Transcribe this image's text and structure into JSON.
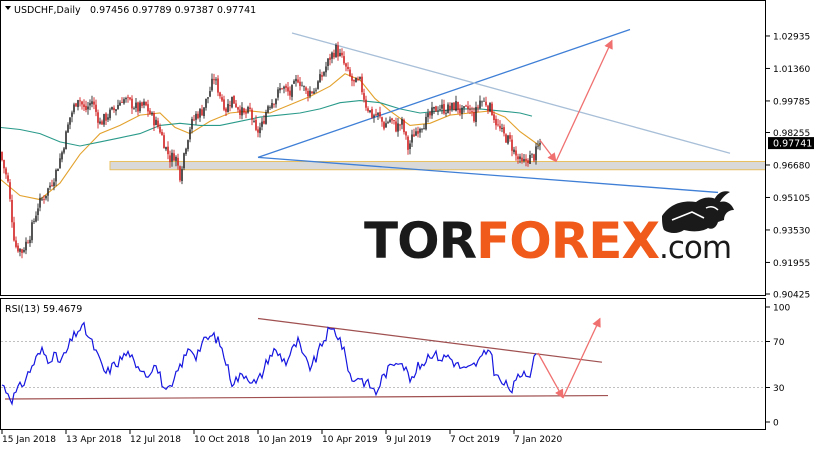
{
  "header": {
    "symbol": "USDCHF,Daily",
    "ohlc": "0.97456 0.97789 0.97387 0.97741",
    "rsi_label": "RSI(13) 59.4679"
  },
  "watermark": {
    "part1": "TOR",
    "part2": "FOREX",
    "part3": ".com",
    "colors": {
      "dark": "#1a1a1a",
      "accent": "#f05a1a"
    }
  },
  "colors": {
    "bull": "#2a2a2a",
    "bear": "#d21e1e",
    "ma_fast": "#e3a12c",
    "ma_slow": "#2a9a8a",
    "trend_blue": "#3f7fd6",
    "trend_gray": "#a8bfd8",
    "support_zone": "#d9d9d9",
    "support_border": "#e8c060",
    "arrow": "#f07070",
    "rsi_line": "#1515e0",
    "rsi_trend": "#a05050",
    "price_tag_bg": "#000000",
    "price_tag_fg": "#ffffff"
  },
  "chart_data": [
    {
      "type": "candlestick",
      "symbol": "USDCHF",
      "timeframe": "Daily",
      "last_price": "0.97741",
      "ylim": [
        0.90425,
        1.04
      ],
      "y_ticks": [
        "1.02935",
        "1.01360",
        "0.99785",
        "0.98255",
        "0.96680",
        "0.95105",
        "0.93530",
        "0.91955",
        "0.90425"
      ],
      "x_ticks": [
        "15 Jan 2018",
        "13 Apr 2018",
        "12 Jul 2018",
        "10 Oct 2018",
        "10 Jan 2019",
        "10 Apr 2019",
        "9 Jul 2019",
        "7 Oct 2019",
        "7 Jan 2020"
      ],
      "close_path": [
        [
          0,
          0.973
        ],
        [
          8,
          0.958
        ],
        [
          15,
          0.928
        ],
        [
          22,
          0.925
        ],
        [
          30,
          0.933
        ],
        [
          38,
          0.947
        ],
        [
          47,
          0.954
        ],
        [
          55,
          0.962
        ],
        [
          62,
          0.973
        ],
        [
          70,
          0.99
        ],
        [
          78,
          1.0
        ],
        [
          85,
          0.993
        ],
        [
          92,
          0.998
        ],
        [
          100,
          0.987
        ],
        [
          108,
          0.991
        ],
        [
          115,
          0.994
        ],
        [
          122,
          0.999
        ],
        [
          130,
          0.997
        ],
        [
          138,
          0.994
        ],
        [
          145,
          0.996
        ],
        [
          152,
          0.99
        ],
        [
          160,
          0.984
        ],
        [
          165,
          0.976
        ],
        [
          170,
          0.97
        ],
        [
          175,
          0.972
        ],
        [
          180,
          0.962
        ],
        [
          185,
          0.975
        ],
        [
          190,
          0.985
        ],
        [
          196,
          0.991
        ],
        [
          202,
          0.993
        ],
        [
          208,
          1.0
        ],
        [
          214,
          1.009
        ],
        [
          220,
          1.001
        ],
        [
          226,
          0.994
        ],
        [
          232,
          0.999
        ],
        [
          238,
          0.995
        ],
        [
          244,
          0.991
        ],
        [
          250,
          0.993
        ],
        [
          256,
          0.982
        ],
        [
          262,
          0.986
        ],
        [
          268,
          0.996
        ],
        [
          275,
          0.999
        ],
        [
          282,
          1.005
        ],
        [
          290,
          1.001
        ],
        [
          298,
          1.009
        ],
        [
          306,
          1.002
        ],
        [
          314,
          1.003
        ],
        [
          322,
          1.01
        ],
        [
          330,
          1.019
        ],
        [
          336,
          1.023
        ],
        [
          342,
          1.018
        ],
        [
          348,
          1.011
        ],
        [
          354,
          1.006
        ],
        [
          360,
          1.007
        ],
        [
          366,
          0.996
        ],
        [
          372,
          0.991
        ],
        [
          378,
          0.991
        ],
        [
          384,
          0.986
        ],
        [
          390,
          0.989
        ],
        [
          396,
          0.985
        ],
        [
          402,
          0.987
        ],
        [
          408,
          0.975
        ],
        [
          414,
          0.982
        ],
        [
          420,
          0.986
        ],
        [
          426,
          0.988
        ],
        [
          432,
          0.992
        ],
        [
          438,
          0.995
        ],
        [
          444,
          0.994
        ],
        [
          450,
          0.994
        ],
        [
          456,
          0.996
        ],
        [
          462,
          0.992
        ],
        [
          468,
          0.994
        ],
        [
          474,
          0.99
        ],
        [
          480,
          0.998
        ],
        [
          486,
          0.997
        ],
        [
          492,
          0.993
        ],
        [
          498,
          0.985
        ],
        [
          504,
          0.981
        ],
        [
          510,
          0.978
        ],
        [
          516,
          0.971
        ],
        [
          522,
          0.967
        ],
        [
          528,
          0.97
        ],
        [
          534,
          0.971
        ],
        [
          540,
          0.9774
        ]
      ],
      "moving_averages": [
        {
          "color": "ma_fast",
          "path": [
            [
              0,
              0.96
            ],
            [
              20,
              0.952
            ],
            [
              40,
              0.95
            ],
            [
              60,
              0.958
            ],
            [
              80,
              0.972
            ],
            [
              100,
              0.982
            ],
            [
              120,
              0.986
            ],
            [
              140,
              0.991
            ],
            [
              160,
              0.992
            ],
            [
              175,
              0.985
            ],
            [
              190,
              0.982
            ],
            [
              210,
              0.988
            ],
            [
              230,
              0.992
            ],
            [
              250,
              0.993
            ],
            [
              270,
              0.992
            ],
            [
              290,
              0.996
            ],
            [
              310,
              1.0
            ],
            [
              330,
              1.005
            ],
            [
              345,
              1.011
            ],
            [
              360,
              1.008
            ],
            [
              375,
              0.999
            ],
            [
              390,
              0.993
            ],
            [
              410,
              0.986
            ],
            [
              430,
              0.987
            ],
            [
              450,
              0.991
            ],
            [
              470,
              0.992
            ],
            [
              490,
              0.993
            ],
            [
              505,
              0.99
            ],
            [
              520,
              0.983
            ],
            [
              540,
              0.976
            ]
          ]
        },
        {
          "color": "ma_slow",
          "path": [
            [
              0,
              0.985
            ],
            [
              20,
              0.984
            ],
            [
              40,
              0.982
            ],
            [
              60,
              0.978
            ],
            [
              80,
              0.976
            ],
            [
              100,
              0.978
            ],
            [
              120,
              0.98
            ],
            [
              140,
              0.982
            ],
            [
              160,
              0.986
            ],
            [
              180,
              0.987
            ],
            [
              200,
              0.986
            ],
            [
              220,
              0.986
            ],
            [
              240,
              0.988
            ],
            [
              260,
              0.99
            ],
            [
              280,
              0.991
            ],
            [
              300,
              0.992
            ],
            [
              320,
              0.994
            ],
            [
              340,
              0.997
            ],
            [
              360,
              0.998
            ],
            [
              380,
              0.997
            ],
            [
              400,
              0.994
            ],
            [
              420,
              0.992
            ],
            [
              440,
              0.993
            ],
            [
              460,
              0.994
            ],
            [
              480,
              0.994
            ],
            [
              500,
              0.993
            ],
            [
              520,
              0.992
            ],
            [
              532,
              0.9905
            ]
          ]
        }
      ],
      "support_zone": {
        "from": 0.9645,
        "to": 0.9685,
        "x": [
          110,
          775
        ]
      },
      "trendlines": [
        {
          "color": "trend_blue",
          "from": [
            258,
            0.9705
          ],
          "to": [
            630,
            1.0325
          ]
        },
        {
          "color": "trend_blue",
          "from": [
            258,
            0.9705
          ],
          "to": [
            718,
            0.9535
          ]
        },
        {
          "color": "trend_gray",
          "from": [
            292,
            1.0308
          ],
          "to": [
            730,
            0.9725
          ]
        }
      ],
      "forecast_arrows": [
        {
          "from": [
            540,
            0.9788
          ],
          "to": [
            556,
            0.9685
          ]
        },
        {
          "from": [
            556,
            0.9685
          ],
          "to": [
            612,
            1.0272
          ]
        }
      ]
    },
    {
      "type": "line",
      "name": "RSI(13)",
      "last_value": 59.4679,
      "ylim": [
        0,
        100
      ],
      "y_ticks": [
        100,
        70,
        30,
        0
      ],
      "series_path": [
        [
          0,
          35
        ],
        [
          6,
          28
        ],
        [
          12,
          20
        ],
        [
          18,
          28
        ],
        [
          24,
          35
        ],
        [
          30,
          45
        ],
        [
          36,
          55
        ],
        [
          42,
          62
        ],
        [
          48,
          55
        ],
        [
          54,
          58
        ],
        [
          60,
          52
        ],
        [
          66,
          60
        ],
        [
          72,
          72
        ],
        [
          78,
          80
        ],
        [
          84,
          82
        ],
        [
          88,
          75
        ],
        [
          94,
          65
        ],
        [
          100,
          52
        ],
        [
          106,
          42
        ],
        [
          112,
          48
        ],
        [
          118,
          52
        ],
        [
          124,
          58
        ],
        [
          130,
          60
        ],
        [
          136,
          45
        ],
        [
          142,
          48
        ],
        [
          148,
          40
        ],
        [
          154,
          52
        ],
        [
          160,
          40
        ],
        [
          166,
          25
        ],
        [
          172,
          30
        ],
        [
          178,
          45
        ],
        [
          184,
          55
        ],
        [
          190,
          65
        ],
        [
          196,
          58
        ],
        [
          202,
          68
        ],
        [
          208,
          73
        ],
        [
          214,
          75
        ],
        [
          220,
          68
        ],
        [
          226,
          52
        ],
        [
          232,
          35
        ],
        [
          238,
          38
        ],
        [
          244,
          42
        ],
        [
          250,
          38
        ],
        [
          256,
          33
        ],
        [
          262,
          42
        ],
        [
          268,
          55
        ],
        [
          274,
          62
        ],
        [
          280,
          58
        ],
        [
          286,
          52
        ],
        [
          292,
          62
        ],
        [
          298,
          70
        ],
        [
          304,
          55
        ],
        [
          310,
          48
        ],
        [
          316,
          55
        ],
        [
          322,
          68
        ],
        [
          328,
          78
        ],
        [
          334,
          80
        ],
        [
          340,
          72
        ],
        [
          346,
          55
        ],
        [
          352,
          35
        ],
        [
          358,
          40
        ],
        [
          364,
          35
        ],
        [
          370,
          32
        ],
        [
          376,
          25
        ],
        [
          382,
          38
        ],
        [
          388,
          45
        ],
        [
          394,
          52
        ],
        [
          400,
          55
        ],
        [
          406,
          45
        ],
        [
          412,
          35
        ],
        [
          418,
          48
        ],
        [
          424,
          52
        ],
        [
          430,
          60
        ],
        [
          436,
          58
        ],
        [
          442,
          55
        ],
        [
          448,
          58
        ],
        [
          454,
          52
        ],
        [
          460,
          48
        ],
        [
          466,
          45
        ],
        [
          472,
          48
        ],
        [
          478,
          52
        ],
        [
          484,
          58
        ],
        [
          490,
          65
        ],
        [
          494,
          45
        ],
        [
          500,
          35
        ],
        [
          506,
          32
        ],
        [
          512,
          28
        ],
        [
          518,
          38
        ],
        [
          524,
          45
        ],
        [
          530,
          42
        ],
        [
          536,
          59.5
        ]
      ],
      "trendlines": [
        {
          "color": "rsi_trend",
          "from": [
            258,
            90
          ],
          "to": [
            602,
            52
          ]
        },
        {
          "color": "rsi_trend",
          "from": [
            5,
            20
          ],
          "to": [
            608,
            23
          ]
        }
      ],
      "forecast_arrows": [
        {
          "from": [
            538,
            60
          ],
          "to": [
            563,
            21
          ]
        },
        {
          "from": [
            563,
            21
          ],
          "to": [
            600,
            90
          ]
        }
      ]
    }
  ]
}
